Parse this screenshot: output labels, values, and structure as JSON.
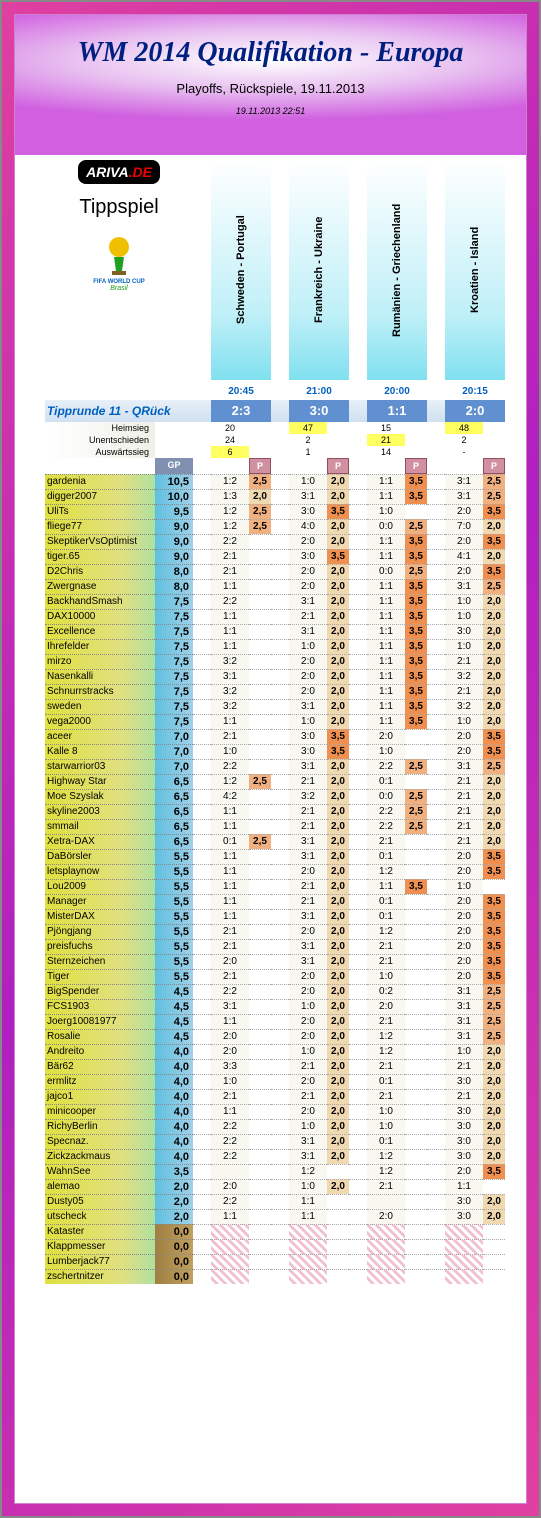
{
  "title": "WM 2014 Qualifikation - Europa",
  "subtitle": "Playoffs, Rückspiele, 19.11.2013",
  "timestamp": "19.11.2013 22:51",
  "logo": {
    "brand": "ARIVA",
    "suffix": ".DE",
    "label": "Tippspiel",
    "wc1": "FIFA WORLD CUP",
    "wc2": "Brasil"
  },
  "matches": [
    {
      "name": "Schweden - Portugal",
      "time": "20:45",
      "result": "2:3",
      "h": "20",
      "u": "24",
      "a": "6",
      "hi": "a"
    },
    {
      "name": "Frankreich - Ukraine",
      "time": "21:00",
      "result": "3:0",
      "h": "47",
      "u": "2",
      "a": "1",
      "hi": "h"
    },
    {
      "name": "Rumänien - Griechenland",
      "time": "20:00",
      "result": "1:1",
      "h": "15",
      "u": "21",
      "a": "14",
      "hi": "u"
    },
    {
      "name": "Kroatien - Island",
      "time": "20:15",
      "result": "2:0",
      "h": "48",
      "u": "2",
      "a": "-",
      "hi": "h"
    }
  ],
  "round": "Tipprunde 11 - QRück",
  "vote_labels": {
    "h": "Heimsieg",
    "u": "Unentschieden",
    "a": "Auswärtssieg"
  },
  "hdr": {
    "gp": "GP",
    "p": "P"
  },
  "players": [
    {
      "n": "gardenia",
      "gp": "10,5",
      "t": [
        "1:2",
        "1:0",
        "1:1",
        "3:1"
      ],
      "p": [
        "2,5",
        "2,0",
        "3,5",
        "2,5"
      ]
    },
    {
      "n": "digger2007",
      "gp": "10,0",
      "t": [
        "1:3",
        "3:1",
        "1:1",
        "3:1"
      ],
      "p": [
        "2,0",
        "2,0",
        "3,5",
        "2,5"
      ]
    },
    {
      "n": "UliTs",
      "gp": "9,5",
      "t": [
        "1:2",
        "3:0",
        "1:0",
        "2:0"
      ],
      "p": [
        "2,5",
        "3,5",
        "",
        "3,5"
      ]
    },
    {
      "n": "fliege77",
      "gp": "9,0",
      "t": [
        "1:2",
        "4:0",
        "0:0",
        "7:0"
      ],
      "p": [
        "2,5",
        "2,0",
        "2,5",
        "2,0"
      ]
    },
    {
      "n": "SkeptikerVsOptimist",
      "gp": "9,0",
      "t": [
        "2:2",
        "2:0",
        "1:1",
        "2:0"
      ],
      "p": [
        "",
        "2,0",
        "3,5",
        "3,5"
      ]
    },
    {
      "n": "tiger.65",
      "gp": "9,0",
      "t": [
        "2:1",
        "3:0",
        "1:1",
        "4:1"
      ],
      "p": [
        "",
        "3,5",
        "3,5",
        "2,0"
      ]
    },
    {
      "n": "D2Chris",
      "gp": "8,0",
      "t": [
        "2:1",
        "2:0",
        "0:0",
        "2:0"
      ],
      "p": [
        "",
        "2,0",
        "2,5",
        "3,5"
      ]
    },
    {
      "n": "Zwergnase",
      "gp": "8,0",
      "t": [
        "1:1",
        "2:0",
        "1:1",
        "3:1"
      ],
      "p": [
        "",
        "2,0",
        "3,5",
        "2,5"
      ]
    },
    {
      "n": "BackhandSmash",
      "gp": "7,5",
      "t": [
        "2:2",
        "3:1",
        "1:1",
        "1:0"
      ],
      "p": [
        "",
        "2,0",
        "3,5",
        "2,0"
      ]
    },
    {
      "n": "DAX10000",
      "gp": "7,5",
      "t": [
        "1:1",
        "2:1",
        "1:1",
        "1:0"
      ],
      "p": [
        "",
        "2,0",
        "3,5",
        "2,0"
      ]
    },
    {
      "n": "Excellence",
      "gp": "7,5",
      "t": [
        "1:1",
        "3:1",
        "1:1",
        "3:0"
      ],
      "p": [
        "",
        "2,0",
        "3,5",
        "2,0"
      ]
    },
    {
      "n": "Ihrefelder",
      "gp": "7,5",
      "t": [
        "1:1",
        "1:0",
        "1:1",
        "1:0"
      ],
      "p": [
        "",
        "2,0",
        "3,5",
        "2,0"
      ]
    },
    {
      "n": "mirzo",
      "gp": "7,5",
      "t": [
        "3:2",
        "2:0",
        "1:1",
        "2:1"
      ],
      "p": [
        "",
        "2,0",
        "3,5",
        "2,0"
      ]
    },
    {
      "n": "Nasenkalli",
      "gp": "7,5",
      "t": [
        "3:1",
        "2:0",
        "1:1",
        "3:2"
      ],
      "p": [
        "",
        "2,0",
        "3,5",
        "2,0"
      ]
    },
    {
      "n": "Schnurrstracks",
      "gp": "7,5",
      "t": [
        "3:2",
        "2:0",
        "1:1",
        "2:1"
      ],
      "p": [
        "",
        "2,0",
        "3,5",
        "2,0"
      ]
    },
    {
      "n": "sweden",
      "gp": "7,5",
      "t": [
        "3:2",
        "3:1",
        "1:1",
        "3:2"
      ],
      "p": [
        "",
        "2,0",
        "3,5",
        "2,0"
      ]
    },
    {
      "n": "vega2000",
      "gp": "7,5",
      "t": [
        "1:1",
        "1:0",
        "1:1",
        "1:0"
      ],
      "p": [
        "",
        "2,0",
        "3,5",
        "2,0"
      ]
    },
    {
      "n": "aceer",
      "gp": "7,0",
      "t": [
        "2:1",
        "3:0",
        "2:0",
        "2:0"
      ],
      "p": [
        "",
        "3,5",
        "",
        "3,5"
      ]
    },
    {
      "n": "Kalle 8",
      "gp": "7,0",
      "t": [
        "1:0",
        "3:0",
        "1:0",
        "2:0"
      ],
      "p": [
        "",
        "3,5",
        "",
        "3,5"
      ]
    },
    {
      "n": "starwarrior03",
      "gp": "7,0",
      "t": [
        "2:2",
        "3:1",
        "2:2",
        "3:1"
      ],
      "p": [
        "",
        "2,0",
        "2,5",
        "2,5"
      ]
    },
    {
      "n": "Highway Star",
      "gp": "6,5",
      "t": [
        "1:2",
        "2:1",
        "0:1",
        "2:1"
      ],
      "p": [
        "2,5",
        "2,0",
        "",
        "2,0"
      ]
    },
    {
      "n": "Moe Szyslak",
      "gp": "6,5",
      "t": [
        "4:2",
        "3:2",
        "0:0",
        "2:1"
      ],
      "p": [
        "",
        "2,0",
        "2,5",
        "2,0"
      ]
    },
    {
      "n": "skyline2003",
      "gp": "6,5",
      "t": [
        "1:1",
        "2:1",
        "2:2",
        "2:1"
      ],
      "p": [
        "",
        "2,0",
        "2,5",
        "2,0"
      ]
    },
    {
      "n": "smmail",
      "gp": "6,5",
      "t": [
        "1:1",
        "2:1",
        "2:2",
        "2:1"
      ],
      "p": [
        "",
        "2,0",
        "2,5",
        "2,0"
      ]
    },
    {
      "n": "Xetra-DAX",
      "gp": "6,5",
      "t": [
        "0:1",
        "3:1",
        "2:1",
        "2:1"
      ],
      "p": [
        "2,5",
        "2,0",
        "",
        "2,0"
      ]
    },
    {
      "n": "DaBörsler",
      "gp": "5,5",
      "t": [
        "1:1",
        "3:1",
        "0:1",
        "2:0"
      ],
      "p": [
        "",
        "2,0",
        "",
        "3,5"
      ]
    },
    {
      "n": "letsplaynow",
      "gp": "5,5",
      "t": [
        "1:1",
        "2:0",
        "1:2",
        "2:0"
      ],
      "p": [
        "",
        "2,0",
        "",
        "3,5"
      ]
    },
    {
      "n": "Lou2009",
      "gp": "5,5",
      "t": [
        "1:1",
        "2:1",
        "1:1",
        "1:0"
      ],
      "p": [
        "",
        "2,0",
        "3,5",
        ""
      ]
    },
    {
      "n": "Manager",
      "gp": "5,5",
      "t": [
        "1:1",
        "2:1",
        "0:1",
        "2:0"
      ],
      "p": [
        "",
        "2,0",
        "",
        "3,5"
      ]
    },
    {
      "n": "MisterDAX",
      "gp": "5,5",
      "t": [
        "1:1",
        "3:1",
        "0:1",
        "2:0"
      ],
      "p": [
        "",
        "2,0",
        "",
        "3,5"
      ]
    },
    {
      "n": "Pjöngjang",
      "gp": "5,5",
      "t": [
        "2:1",
        "2:0",
        "1:2",
        "2:0"
      ],
      "p": [
        "",
        "2,0",
        "",
        "3,5"
      ]
    },
    {
      "n": "preisfuchs",
      "gp": "5,5",
      "t": [
        "2:1",
        "3:1",
        "2:1",
        "2:0"
      ],
      "p": [
        "",
        "2,0",
        "",
        "3,5"
      ]
    },
    {
      "n": "Sternzeichen",
      "gp": "5,5",
      "t": [
        "2:0",
        "3:1",
        "2:1",
        "2:0"
      ],
      "p": [
        "",
        "2,0",
        "",
        "3,5"
      ]
    },
    {
      "n": "Tiger",
      "gp": "5,5",
      "t": [
        "2:1",
        "2:0",
        "1:0",
        "2:0"
      ],
      "p": [
        "",
        "2,0",
        "",
        "3,5"
      ]
    },
    {
      "n": "BigSpender",
      "gp": "4,5",
      "t": [
        "2:2",
        "2:0",
        "0:2",
        "3:1"
      ],
      "p": [
        "",
        "2,0",
        "",
        "2,5"
      ]
    },
    {
      "n": "FCS1903",
      "gp": "4,5",
      "t": [
        "3:1",
        "1:0",
        "2:0",
        "3:1"
      ],
      "p": [
        "",
        "2,0",
        "",
        "2,5"
      ]
    },
    {
      "n": "Joerg10081977",
      "gp": "4,5",
      "t": [
        "1:1",
        "2:0",
        "2:1",
        "3:1"
      ],
      "p": [
        "",
        "2,0",
        "",
        "2,5"
      ]
    },
    {
      "n": "Rosalie",
      "gp": "4,5",
      "t": [
        "2:0",
        "2:0",
        "1:2",
        "3:1"
      ],
      "p": [
        "",
        "2,0",
        "",
        "2,5"
      ]
    },
    {
      "n": "Andreito",
      "gp": "4,0",
      "t": [
        "2:0",
        "1:0",
        "1:2",
        "1:0"
      ],
      "p": [
        "",
        "2,0",
        "",
        "2,0"
      ]
    },
    {
      "n": "Bär62",
      "gp": "4,0",
      "t": [
        "3:3",
        "2:1",
        "2:1",
        "2:1"
      ],
      "p": [
        "",
        "2,0",
        "",
        "2,0"
      ]
    },
    {
      "n": "ermlitz",
      "gp": "4,0",
      "t": [
        "1:0",
        "2:0",
        "0:1",
        "3:0"
      ],
      "p": [
        "",
        "2,0",
        "",
        "2,0"
      ]
    },
    {
      "n": "jajco1",
      "gp": "4,0",
      "t": [
        "2:1",
        "2:1",
        "2:1",
        "2:1"
      ],
      "p": [
        "",
        "2,0",
        "",
        "2,0"
      ]
    },
    {
      "n": "minicooper",
      "gp": "4,0",
      "t": [
        "1:1",
        "2:0",
        "1:0",
        "3:0"
      ],
      "p": [
        "",
        "2,0",
        "",
        "2,0"
      ]
    },
    {
      "n": "RichyBerlin",
      "gp": "4,0",
      "t": [
        "2:2",
        "1:0",
        "1:0",
        "3:0"
      ],
      "p": [
        "",
        "2,0",
        "",
        "2,0"
      ]
    },
    {
      "n": "Specnaz.",
      "gp": "4,0",
      "t": [
        "2:2",
        "3:1",
        "0:1",
        "3:0"
      ],
      "p": [
        "",
        "2,0",
        "",
        "2,0"
      ]
    },
    {
      "n": "Zickzackmaus",
      "gp": "4,0",
      "t": [
        "2:2",
        "3:1",
        "1:2",
        "3:0"
      ],
      "p": [
        "",
        "2,0",
        "",
        "2,0"
      ]
    },
    {
      "n": "WahnSee",
      "gp": "3,5",
      "t": [
        "",
        "1:2",
        "1:2",
        "2:0"
      ],
      "p": [
        "",
        "",
        "",
        "3,5"
      ]
    },
    {
      "n": "alemao",
      "gp": "2,0",
      "t": [
        "2:0",
        "1:0",
        "2:1",
        "1:1"
      ],
      "p": [
        "",
        "2,0",
        "",
        ""
      ]
    },
    {
      "n": "Dusty05",
      "gp": "2,0",
      "t": [
        "2:2",
        "1:1",
        "",
        "3:0"
      ],
      "p": [
        "",
        "",
        "",
        "2,0"
      ]
    },
    {
      "n": "utscheck",
      "gp": "2,0",
      "t": [
        "1:1",
        "1:1",
        "2:0",
        "3:0"
      ],
      "p": [
        "",
        "",
        "",
        "2,0"
      ]
    },
    {
      "n": "Kataster",
      "gp": "0,0",
      "t": [
        "",
        "",
        "",
        ""
      ],
      "p": [
        "",
        "",
        "",
        ""
      ]
    },
    {
      "n": "Klappmesser",
      "gp": "0,0",
      "t": [
        "",
        "",
        "",
        ""
      ],
      "p": [
        "",
        "",
        "",
        ""
      ]
    },
    {
      "n": "Lumberjack77",
      "gp": "0,0",
      "t": [
        "",
        "",
        "",
        ""
      ],
      "p": [
        "",
        "",
        "",
        ""
      ]
    },
    {
      "n": "zschertnitzer",
      "gp": "0,0",
      "t": [
        "",
        "",
        "",
        ""
      ],
      "p": [
        "",
        "",
        "",
        ""
      ]
    }
  ],
  "colors": {
    "frame_grad": [
      "#e040a0",
      "#b020c0"
    ],
    "header_grad": [
      "#fff",
      "#d060e0"
    ],
    "match_col": "#80e0f0",
    "result_bg": "#6090d0",
    "gp_bg": "#8090b0",
    "p_bg": "#d090a0",
    "name_bg": "#e0e040",
    "gp_cell": "#60c0e0",
    "p20": "#f0d8b0",
    "p25": "#f0b080",
    "p35": "#f09050",
    "hi": "#ffff60"
  }
}
